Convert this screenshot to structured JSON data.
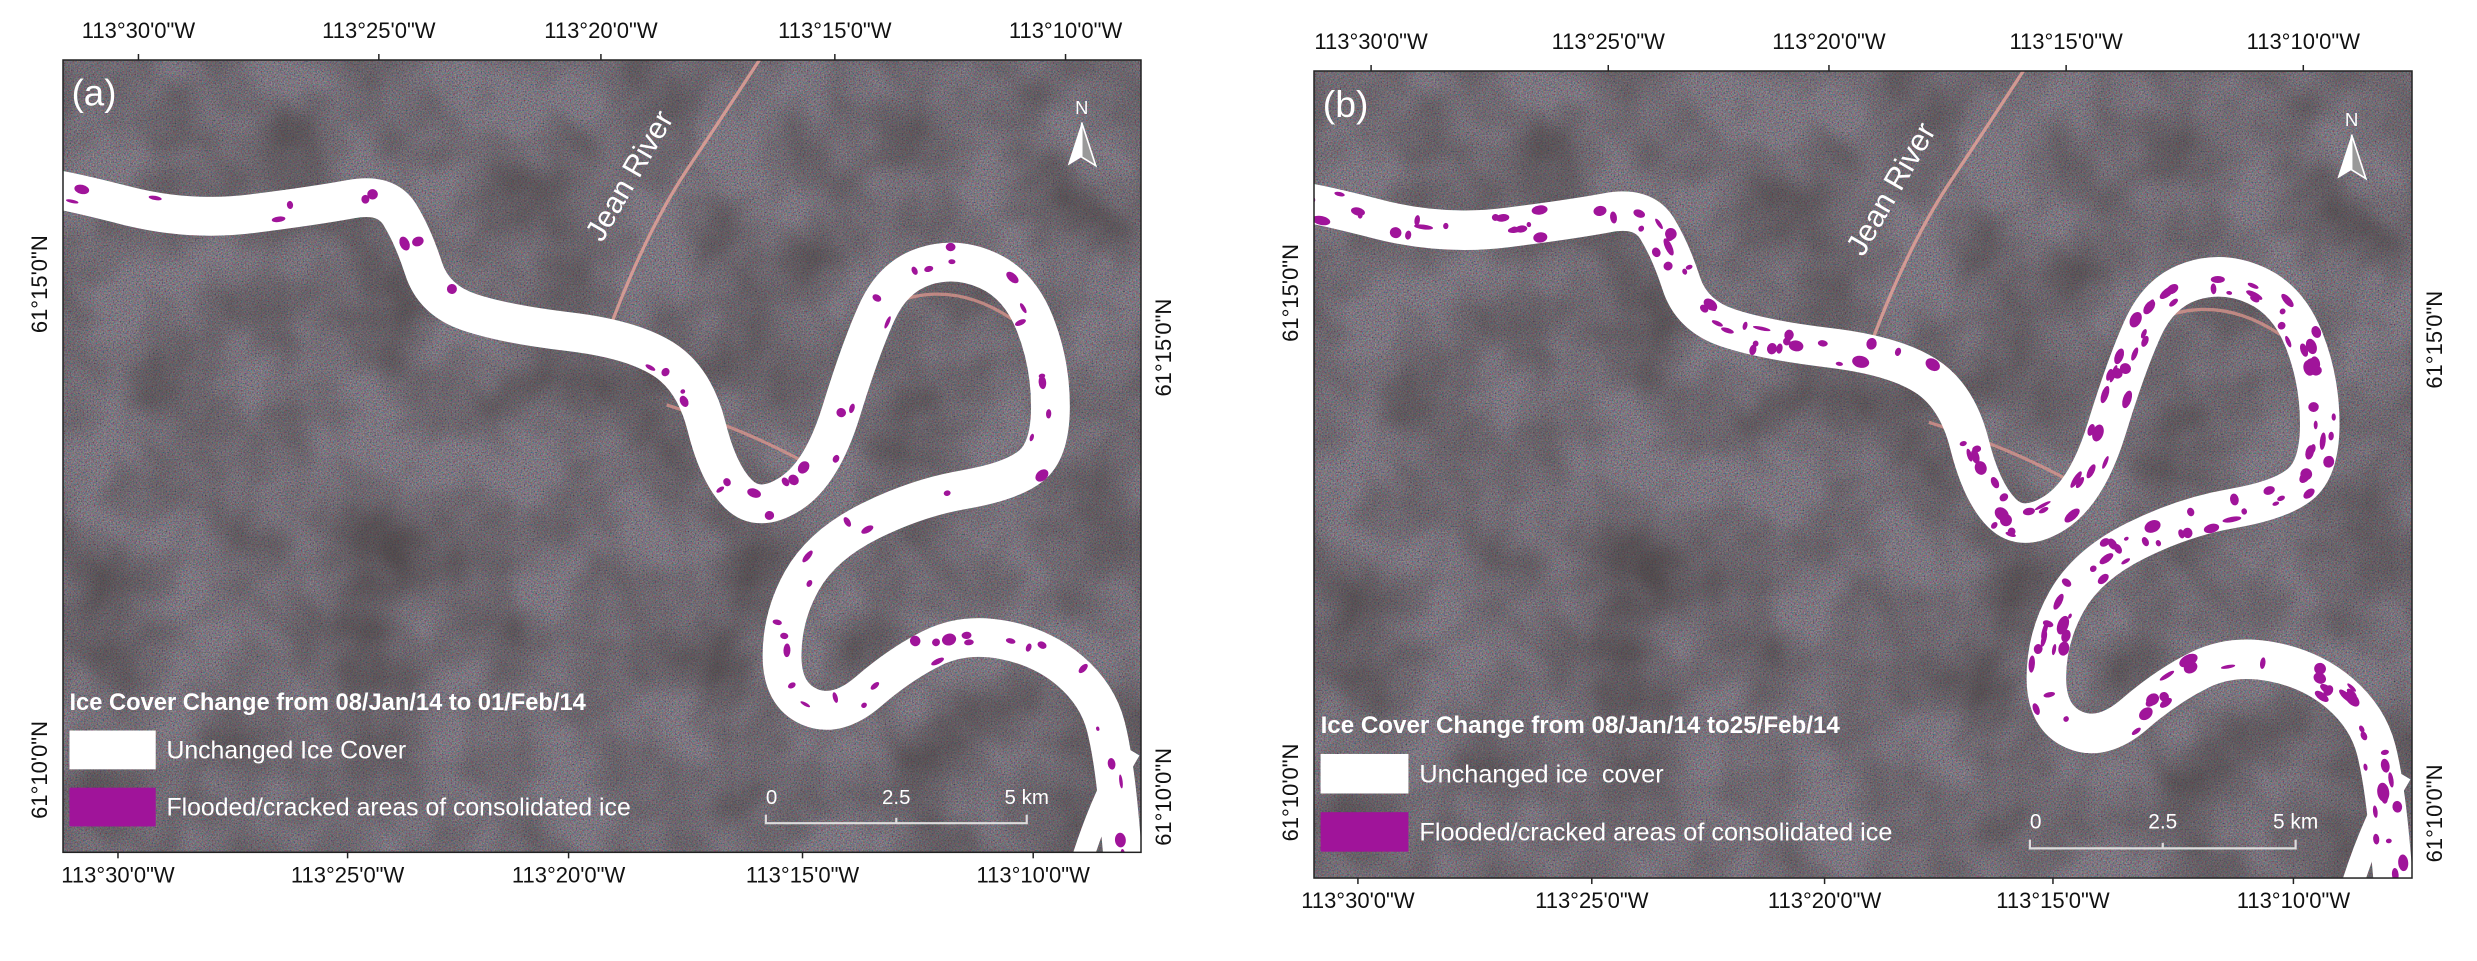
{
  "panels": [
    {
      "label": "(a)",
      "north": "N",
      "river_label": "Jean River",
      "top_ticks": [
        "113°30'0\"W",
        "113°25'0\"W",
        "113°20'0\"W",
        "113°15'0\"W",
        "113°10'0\"W"
      ],
      "bottom_ticks": [
        "113°30'0\"W",
        "113°25'0\"W",
        "113°20'0\"W",
        "113°15'0\"W",
        "113°10'0\"W"
      ],
      "left_ticks": [
        "61°15'0\"N",
        "61°10'0\"N"
      ],
      "right_ticks": [
        "61°15'0\"N",
        "61°10'0\"N"
      ],
      "legend": {
        "title": "Ice Cover Change from 08/Jan/14 to 01/Feb/14",
        "items": [
          "Unchanged Ice Cover",
          "Flooded/cracked areas of consolidated ice"
        ]
      },
      "scale_bar": [
        "0",
        "2.5",
        "5 km"
      ]
    },
    {
      "label": "(b)",
      "north": "N",
      "river_label": "Jean River",
      "top_ticks": [
        "113°30'0\"W",
        "113°25'0\"W",
        "113°20'0\"W",
        "113°15'0\"W",
        "113°10'0\"W"
      ],
      "bottom_ticks": [
        "113°30'0\"W",
        "113°25'0\"W",
        "113°20'0\"W",
        "113°15'0\"W",
        "113°10'0\"W"
      ],
      "left_ticks": [
        "61°15'0\"N",
        "61°10'0\"N"
      ],
      "right_ticks": [
        "61°15'0\"N",
        "61°10'0\"N"
      ],
      "legend": {
        "title": "Ice Cover Change from 08/Jan/14 to25/Feb/14",
        "items": [
          "Unchanged ice  cover",
          "Flooded/cracked areas of consolidated ice"
        ]
      },
      "scale_bar": [
        "0",
        "2.5",
        "5 km"
      ]
    }
  ]
}
